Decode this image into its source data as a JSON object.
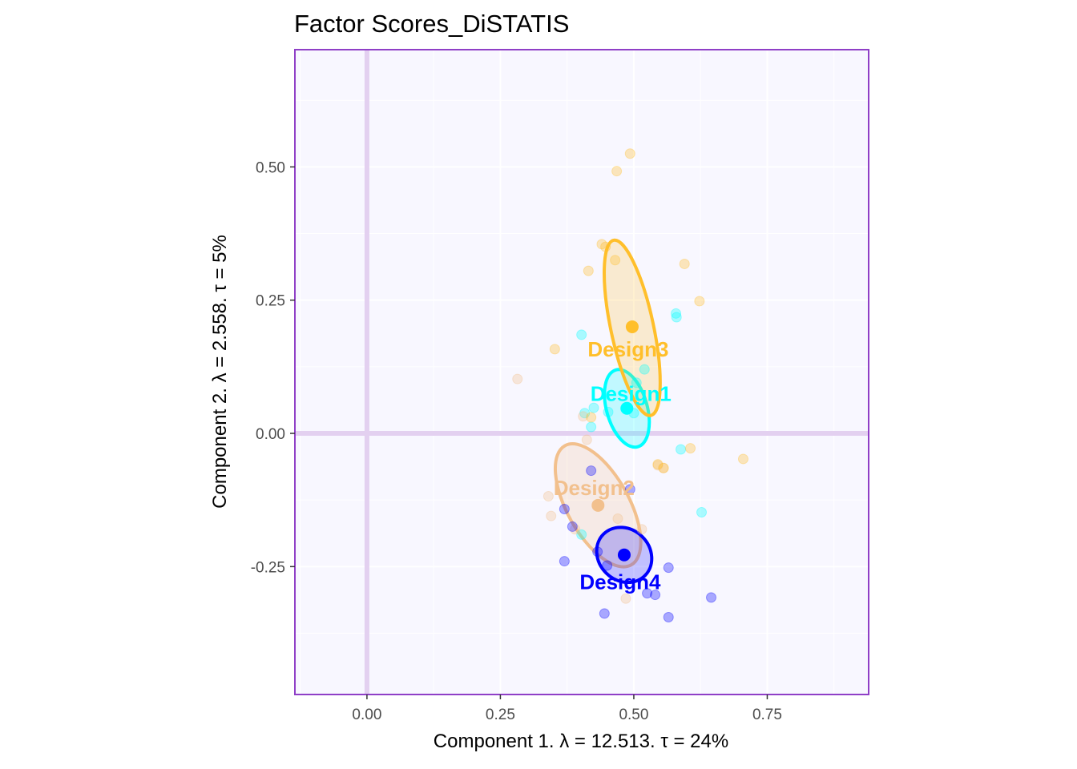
{
  "chart_data": {
    "type": "scatter",
    "title": "Factor Scores_DiSTATIS",
    "xlabel": "Component 1.   λ = 12.513.  τ = 24%",
    "ylabel": "Component 2.   λ = 2.558.  τ = 5%",
    "xlim": [
      -0.135,
      0.94
    ],
    "ylim": [
      -0.49,
      0.72
    ],
    "x_ticks": [
      0.0,
      0.25,
      0.5,
      0.75
    ],
    "x_tick_labels": [
      "0.00",
      "0.25",
      "0.50",
      "0.75"
    ],
    "y_ticks": [
      -0.25,
      0.0,
      0.25,
      0.5
    ],
    "y_tick_labels": [
      "-0.25",
      "0.00",
      "0.25",
      "0.50"
    ],
    "grid": true,
    "background_color": "#f8f7ff",
    "border_color": "#8f3fc7",
    "zero_line_color": "#e3d0f0",
    "series": [
      {
        "name": "Design1",
        "color": "#00ffff",
        "centroid": [
          0.487,
          0.047
        ],
        "ellipse": {
          "cx": 0.487,
          "cy": 0.047,
          "rx": 0.038,
          "ry": 0.075,
          "angle": -16
        },
        "points": [
          [
            0.402,
            0.185
          ],
          [
            0.579,
            0.225
          ],
          [
            0.58,
            0.218
          ],
          [
            0.52,
            0.12
          ],
          [
            0.505,
            0.095
          ],
          [
            0.408,
            0.038
          ],
          [
            0.425,
            0.048
          ],
          [
            0.452,
            0.04
          ],
          [
            0.5,
            0.038
          ],
          [
            0.42,
            0.012
          ],
          [
            0.588,
            -0.03
          ],
          [
            0.627,
            -0.148
          ],
          [
            0.402,
            -0.19
          ]
        ]
      },
      {
        "name": "Design2",
        "color": "#f2c08d",
        "centroid": [
          0.433,
          -0.135
        ],
        "ellipse": {
          "cx": 0.433,
          "cy": -0.135,
          "rx": 0.058,
          "ry": 0.128,
          "angle": -29
        },
        "points": [
          [
            0.282,
            0.102
          ],
          [
            0.405,
            0.032
          ],
          [
            0.412,
            -0.012
          ],
          [
            0.34,
            -0.118
          ],
          [
            0.345,
            -0.155
          ],
          [
            0.39,
            -0.18
          ],
          [
            0.47,
            -0.16
          ],
          [
            0.515,
            -0.18
          ],
          [
            0.485,
            -0.31
          ],
          [
            0.545,
            -0.06
          ],
          [
            0.555,
            -0.065
          ]
        ]
      },
      {
        "name": "Design3",
        "color": "#ffbf2b",
        "centroid": [
          0.497,
          0.2
        ],
        "ellipse": {
          "cx": 0.497,
          "cy": 0.198,
          "rx": 0.04,
          "ry": 0.168,
          "angle": -12
        },
        "points": [
          [
            0.493,
            0.525
          ],
          [
            0.468,
            0.492
          ],
          [
            0.44,
            0.355
          ],
          [
            0.447,
            0.35
          ],
          [
            0.465,
            0.325
          ],
          [
            0.415,
            0.305
          ],
          [
            0.595,
            0.318
          ],
          [
            0.623,
            0.248
          ],
          [
            0.352,
            0.158
          ],
          [
            0.42,
            0.03
          ],
          [
            0.545,
            -0.058
          ],
          [
            0.606,
            -0.028
          ],
          [
            0.705,
            -0.048
          ],
          [
            0.556,
            -0.065
          ]
        ]
      },
      {
        "name": "Design4",
        "color": "#0000ff",
        "centroid": [
          0.482,
          -0.228
        ],
        "ellipse": {
          "cx": 0.482,
          "cy": -0.228,
          "rx": 0.048,
          "ry": 0.055,
          "angle": -45
        },
        "points": [
          [
            0.42,
            -0.07
          ],
          [
            0.493,
            -0.105
          ],
          [
            0.37,
            -0.142
          ],
          [
            0.385,
            -0.175
          ],
          [
            0.432,
            -0.222
          ],
          [
            0.37,
            -0.24
          ],
          [
            0.45,
            -0.248
          ],
          [
            0.565,
            -0.252
          ],
          [
            0.525,
            -0.3
          ],
          [
            0.54,
            -0.303
          ],
          [
            0.645,
            -0.308
          ],
          [
            0.445,
            -0.338
          ],
          [
            0.565,
            -0.345
          ]
        ]
      }
    ]
  }
}
